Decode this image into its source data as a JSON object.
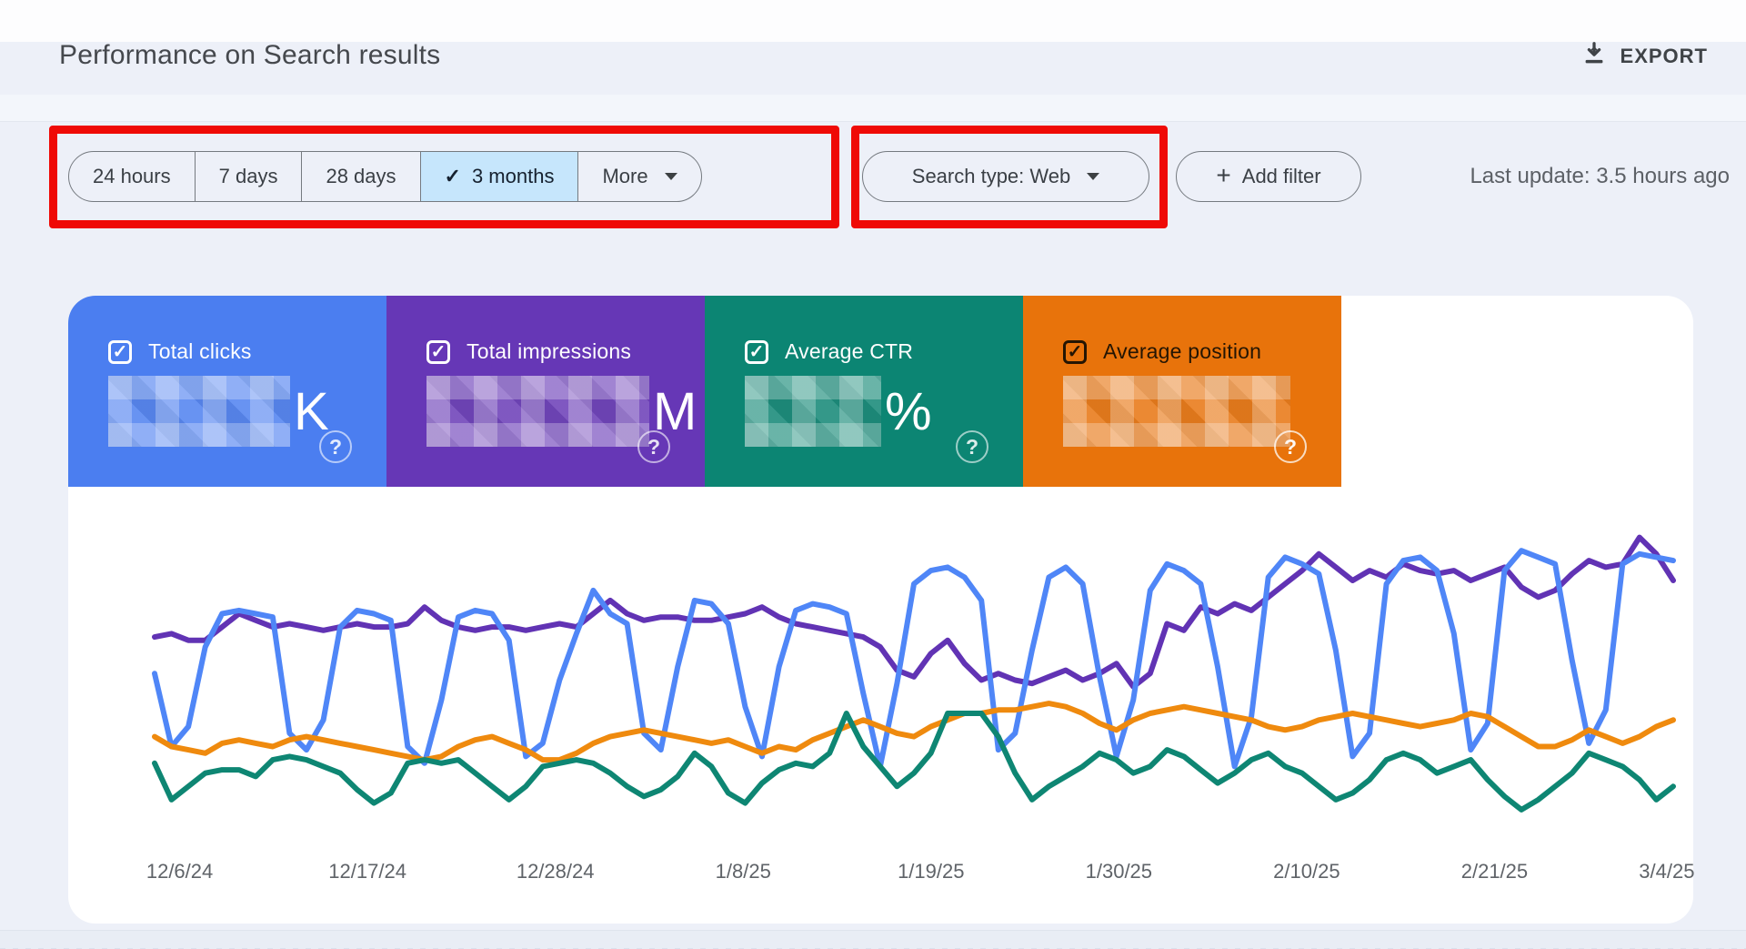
{
  "icons": {
    "check": "✓",
    "plus": "+",
    "help": "?"
  },
  "header": {
    "title": "Performance on Search results",
    "export_label": "EXPORT"
  },
  "filters": {
    "date_chips": [
      {
        "label": "24 hours",
        "selected": false
      },
      {
        "label": "7 days",
        "selected": false
      },
      {
        "label": "28 days",
        "selected": false
      },
      {
        "label": "3 months",
        "selected": true
      },
      {
        "label": "More",
        "selected": false,
        "has_dropdown": true
      }
    ],
    "search_type_label": "Search type: Web",
    "add_filter_label": "Add filter",
    "last_update": "Last update: 3.5 hours ago"
  },
  "annotation_color": "#ef0a06",
  "metric_cards": [
    {
      "label": "Total clicks",
      "value_redacted": true,
      "suffix": "K",
      "color": "#4b7ef0"
    },
    {
      "label": "Total impressions",
      "value_redacted": true,
      "suffix": "M",
      "color": "#6637b6"
    },
    {
      "label": "Average CTR",
      "value_redacted": true,
      "suffix": "%",
      "color": "#0c8573"
    },
    {
      "label": "Average position",
      "value_redacted": true,
      "suffix": "",
      "color": "#e8730b"
    }
  ],
  "chart_data": {
    "type": "line",
    "title": "Performance on Search results",
    "x_labels": [
      "12/6/24",
      "12/17/24",
      "12/28/24",
      "1/8/25",
      "1/19/25",
      "1/30/25",
      "2/10/25",
      "2/21/25",
      "3/4/25"
    ],
    "x_label_positions": [
      2,
      13,
      24,
      35,
      46,
      57,
      68,
      79,
      90
    ],
    "x_range_days": 91,
    "grid": false,
    "legend": "metric cards act as legend",
    "y_axis": "hidden (values redacted), normalized 0-100 scale",
    "series": [
      {
        "key": "impressions",
        "name": "Total impressions",
        "color": "#6133b4",
        "stroke": 6,
        "values": [
          63,
          64,
          62,
          62,
          66,
          70,
          68,
          66,
          67,
          66,
          65,
          66,
          67,
          66,
          66,
          67,
          72,
          68,
          66,
          65,
          66,
          66,
          65,
          66,
          67,
          66,
          70,
          74,
          70,
          68,
          69,
          69,
          68,
          68,
          69,
          70,
          72,
          69,
          67,
          66,
          65,
          64,
          63,
          60,
          53,
          51,
          58,
          62,
          55,
          50,
          52,
          50,
          49,
          51,
          53,
          50,
          52,
          55,
          48,
          52,
          67,
          65,
          72,
          70,
          73,
          71,
          75,
          79,
          83,
          88,
          84,
          80,
          83,
          81,
          85,
          83,
          82,
          83,
          80,
          82,
          84,
          78,
          75,
          77,
          82,
          86,
          84,
          85,
          93,
          88,
          80
        ]
      },
      {
        "key": "clicks",
        "name": "Total clicks",
        "color": "#4f86f7",
        "stroke": 6,
        "values": [
          52,
          30,
          36,
          60,
          70,
          71,
          70,
          69,
          34,
          29,
          38,
          66,
          71,
          70,
          68,
          30,
          25,
          44,
          69,
          71,
          70,
          62,
          27,
          31,
          50,
          64,
          77,
          70,
          67,
          34,
          29,
          54,
          74,
          73,
          67,
          42,
          27,
          54,
          71,
          73,
          72,
          70,
          46,
          24,
          49,
          79,
          83,
          84,
          81,
          74,
          29,
          34,
          59,
          81,
          84,
          79,
          51,
          27,
          44,
          77,
          85,
          83,
          79,
          54,
          24,
          39,
          81,
          87,
          85,
          82,
          59,
          27,
          34,
          79,
          86,
          87,
          83,
          64,
          29,
          37,
          83,
          89,
          87,
          85,
          56,
          31,
          41,
          85,
          88,
          87,
          86
        ]
      },
      {
        "key": "ctr",
        "name": "Average CTR",
        "color": "#ef8a0e",
        "stroke": 6,
        "values": [
          33,
          30,
          29,
          28,
          31,
          32,
          31,
          30,
          32,
          33,
          32,
          31,
          30,
          29,
          28,
          27,
          26,
          27,
          30,
          32,
          33,
          31,
          29,
          26,
          26,
          28,
          31,
          33,
          34,
          35,
          34,
          33,
          32,
          31,
          32,
          30,
          28,
          30,
          29,
          32,
          34,
          36,
          38,
          36,
          34,
          33,
          36,
          38,
          40,
          40,
          41,
          41,
          42,
          43,
          42,
          40,
          37,
          35,
          38,
          40,
          41,
          42,
          41,
          40,
          39,
          38,
          36,
          35,
          36,
          38,
          39,
          40,
          39,
          38,
          37,
          36,
          37,
          38,
          40,
          39,
          36,
          33,
          30,
          30,
          32,
          35,
          33,
          31,
          33,
          36,
          38
        ]
      },
      {
        "key": "position",
        "name": "Average position",
        "color": "#0e8673",
        "stroke": 6,
        "values": [
          25,
          14,
          18,
          22,
          23,
          23,
          21,
          26,
          27,
          26,
          24,
          22,
          17,
          13,
          16,
          25,
          26,
          25,
          26,
          22,
          18,
          14,
          18,
          24,
          25,
          26,
          25,
          22,
          18,
          15,
          17,
          21,
          28,
          24,
          16,
          13,
          19,
          23,
          25,
          24,
          28,
          40,
          30,
          24,
          18,
          22,
          28,
          40,
          40,
          40,
          33,
          22,
          14,
          18,
          21,
          24,
          28,
          26,
          22,
          24,
          29,
          27,
          23,
          19,
          22,
          26,
          28,
          24,
          22,
          18,
          14,
          16,
          20,
          26,
          28,
          26,
          22,
          24,
          26,
          20,
          15,
          11,
          14,
          18,
          22,
          28,
          26,
          24,
          20,
          14,
          18
        ]
      }
    ]
  }
}
